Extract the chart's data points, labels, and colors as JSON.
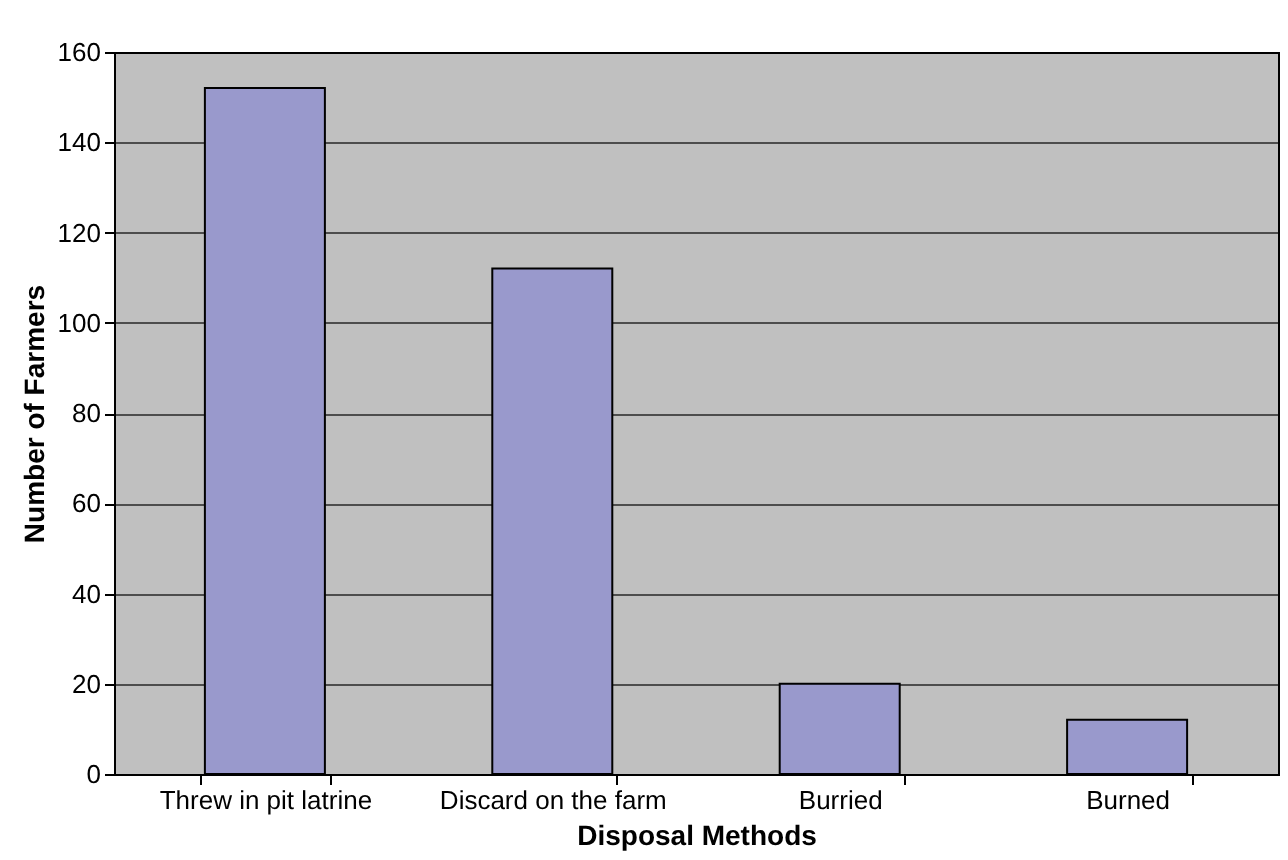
{
  "chart_data": {
    "type": "bar",
    "xlabel": "Disposal Methods",
    "ylabel": "Number of Farmers",
    "categories": [
      "Threw in pit latrine",
      "Discard on the farm",
      "Burried",
      "Burned"
    ],
    "values": [
      152,
      112,
      20,
      12
    ],
    "color": "#9999cc",
    "ylim": [
      0,
      160
    ],
    "yticks": [
      0,
      20,
      40,
      60,
      80,
      100,
      120,
      140,
      160
    ],
    "grid": "y"
  }
}
